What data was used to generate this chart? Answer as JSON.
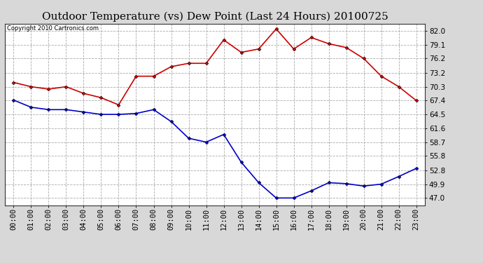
{
  "title": "Outdoor Temperature (vs) Dew Point (Last 24 Hours) 20100725",
  "copyright": "Copyright 2010 Cartronics.com",
  "x_labels": [
    "00:00",
    "01:00",
    "02:00",
    "03:00",
    "04:00",
    "05:00",
    "06:00",
    "07:00",
    "08:00",
    "09:00",
    "10:00",
    "11:00",
    "12:00",
    "13:00",
    "14:00",
    "15:00",
    "16:00",
    "17:00",
    "18:00",
    "19:00",
    "20:00",
    "21:00",
    "22:00",
    "23:00"
  ],
  "temp_data": [
    71.2,
    70.3,
    69.8,
    70.3,
    68.9,
    68.0,
    66.5,
    72.5,
    72.5,
    74.5,
    75.2,
    75.2,
    80.1,
    77.5,
    78.2,
    82.4,
    78.2,
    80.6,
    79.3,
    78.5,
    76.2,
    72.5,
    70.3,
    67.4
  ],
  "dew_data": [
    67.5,
    66.0,
    65.5,
    65.5,
    65.0,
    64.5,
    64.5,
    64.7,
    65.5,
    63.0,
    59.5,
    58.7,
    60.3,
    54.5,
    50.2,
    47.0,
    47.0,
    48.5,
    50.2,
    50.0,
    49.5,
    49.9,
    51.5,
    53.2
  ],
  "temp_color": "#cc0000",
  "dew_color": "#0000cc",
  "yticks": [
    47.0,
    49.9,
    52.8,
    55.8,
    58.7,
    61.6,
    64.5,
    67.4,
    70.3,
    73.2,
    76.2,
    79.1,
    82.0
  ],
  "ylim": [
    45.5,
    83.5
  ],
  "outer_bg": "#d8d8d8",
  "plot_bg": "#ffffff",
  "grid_color": "#aaaaaa",
  "marker": "D",
  "marker_size": 2.5,
  "line_width": 1.2,
  "title_fontsize": 11,
  "copyright_fontsize": 6,
  "tick_fontsize": 7.5
}
